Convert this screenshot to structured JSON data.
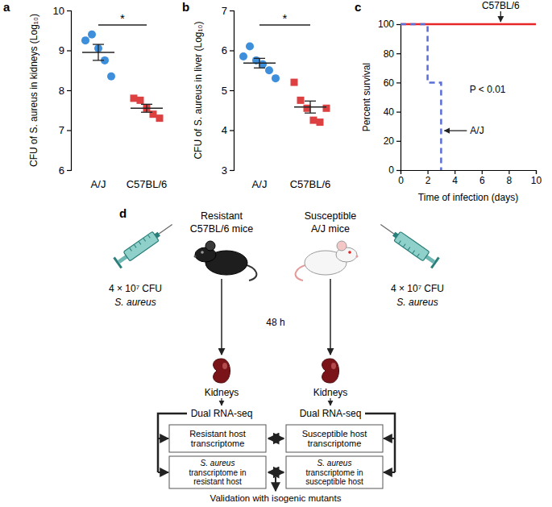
{
  "chart_data": [
    {
      "type": "dot",
      "panel_label": "a",
      "ylabel": "CFU of S. aureus in kidneys (Log₁₀)",
      "ylim": [
        6,
        10
      ],
      "yticks": [
        6,
        7,
        8,
        9,
        10
      ],
      "annotations": [
        "*"
      ],
      "series": [
        {
          "name": "A/J",
          "color": "#3d8fdc",
          "marker": "circle",
          "values": [
            9.25,
            9.4,
            9.05,
            8.75,
            8.35
          ],
          "mean": 8.95,
          "error": 0.2
        },
        {
          "name": "C57BL/6",
          "color": "#dc4040",
          "marker": "square",
          "values": [
            7.8,
            7.75,
            7.55,
            7.4,
            7.3
          ],
          "mean": 7.55,
          "error": 0.1
        }
      ]
    },
    {
      "type": "dot",
      "panel_label": "b",
      "ylabel": "CFU of S. aureus in liver (Log₁₀)",
      "ylim": [
        3,
        7
      ],
      "yticks": [
        3,
        4,
        5,
        6,
        7
      ],
      "annotations": [
        "*"
      ],
      "series": [
        {
          "name": "A/J",
          "color": "#3d8fdc",
          "marker": "circle",
          "values": [
            5.85,
            6.1,
            5.75,
            5.65,
            5.5,
            5.3
          ],
          "mean": 5.68,
          "error": 0.12
        },
        {
          "name": "C57BL/6",
          "color": "#dc4040",
          "marker": "square",
          "values": [
            5.2,
            4.75,
            4.55,
            4.25,
            4.2,
            4.55
          ],
          "mean": 4.58,
          "error": 0.15
        }
      ]
    },
    {
      "type": "line",
      "panel_label": "c",
      "xlabel": "Time of infection (days)",
      "ylabel": "Percent survival",
      "xlim": [
        0,
        10
      ],
      "xticks": [
        0,
        2,
        4,
        6,
        8,
        10
      ],
      "ylim": [
        0,
        100
      ],
      "yticks": [
        0,
        20,
        40,
        60,
        80,
        100
      ],
      "annotations": [
        "P < 0.01"
      ],
      "series": [
        {
          "name": "C57BL/6",
          "color": "#e8262a",
          "line_style": "solid",
          "x": [
            0,
            10
          ],
          "values": [
            100,
            100
          ]
        },
        {
          "name": "A/J",
          "color": "#5a6ed8",
          "line_style": "dashed",
          "x": [
            0,
            2,
            3
          ],
          "values": [
            100,
            60,
            0
          ]
        }
      ]
    }
  ],
  "diagram": {
    "panel_label": "d",
    "time": "48 h",
    "left": {
      "title": [
        "Resistant",
        "C57BL/6 mice"
      ],
      "dose": "4 × 10⁷ CFU",
      "agent": "S. aureus",
      "organ": "Kidneys",
      "method": "Dual RNA-seq",
      "boxes": [
        [
          "Resistant host",
          "transcriptome"
        ],
        [
          "S. aureus",
          "transcriptome in",
          "resistant host"
        ]
      ]
    },
    "right": {
      "title": [
        "Susceptible",
        "A/J mice"
      ],
      "dose": "4 × 10⁷ CFU",
      "agent": "S. aureus",
      "organ": "Kidneys",
      "method": "Dual RNA-seq",
      "boxes": [
        [
          "Susceptible host",
          "transcriptome"
        ],
        [
          "S. aureus",
          "transcriptome in",
          "susceptible host"
        ]
      ]
    },
    "final": "Validation with isogenic mutants"
  }
}
